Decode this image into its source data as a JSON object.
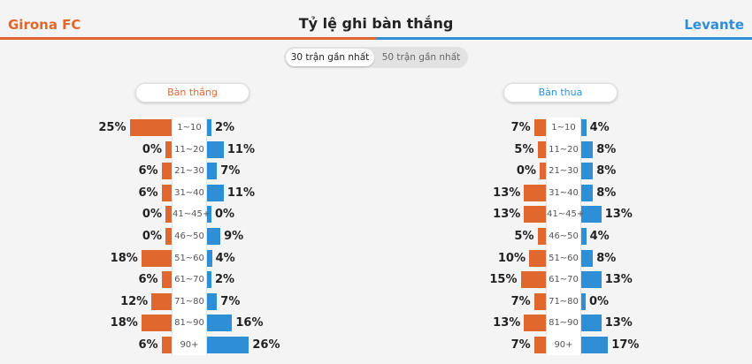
{
  "header": {
    "home_team": "Girona FC",
    "title": "Tỷ lệ ghi bàn thắng",
    "away_team": "Levante"
  },
  "tabs": [
    {
      "label": "30 trận gần nhất",
      "active": true
    },
    {
      "label": "50 trận gần nhất",
      "active": false
    }
  ],
  "colors": {
    "home": "#e0682f",
    "away": "#2e8fd6"
  },
  "intervals": [
    "1~10",
    "11~20",
    "21~30",
    "31~40",
    "41~45+",
    "46~50",
    "51~60",
    "61~70",
    "71~80",
    "81~90",
    "90+"
  ],
  "panels": [
    {
      "key": "scored",
      "title": "Bàn thắng",
      "home_pct": [
        25,
        0,
        6,
        6,
        0,
        0,
        18,
        6,
        12,
        18,
        6
      ],
      "away_pct": [
        2,
        11,
        7,
        11,
        0,
        9,
        4,
        2,
        7,
        16,
        26
      ]
    },
    {
      "key": "conceded",
      "title": "Bàn thua",
      "home_pct": [
        7,
        5,
        0,
        13,
        13,
        5,
        10,
        15,
        7,
        13,
        7
      ],
      "away_pct": [
        4,
        8,
        8,
        8,
        13,
        4,
        8,
        13,
        0,
        13,
        17
      ]
    }
  ]
}
